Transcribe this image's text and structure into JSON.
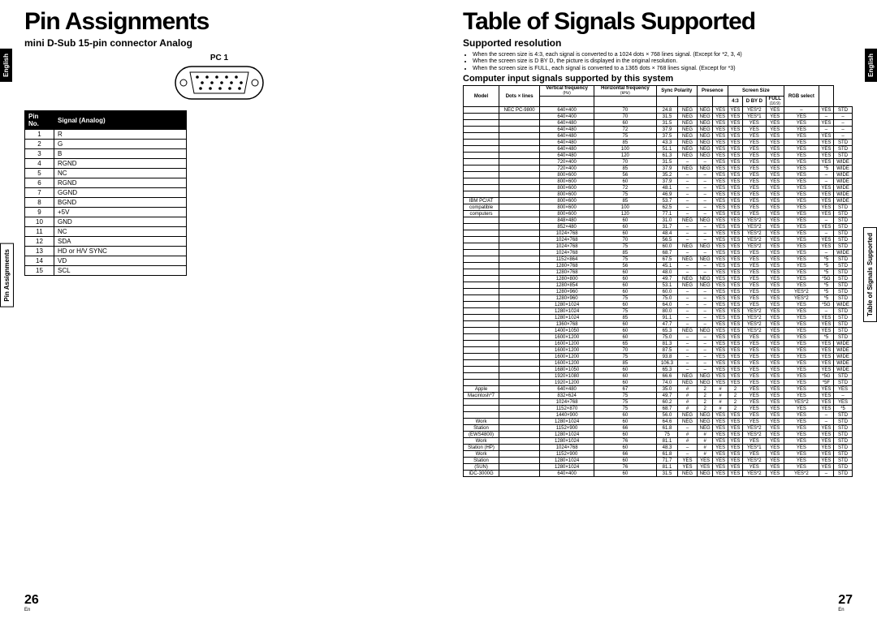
{
  "left": {
    "title": "Pin Assignments",
    "subtitle": "mini D-Sub 15-pin connector Analog",
    "connector_label": "PC 1",
    "tab_english": "English",
    "tab_section": "Pin Assignments",
    "pin_header": [
      "Pin No.",
      "Signal (Analog)"
    ],
    "pins": [
      [
        "1",
        "R"
      ],
      [
        "2",
        "G"
      ],
      [
        "3",
        "B"
      ],
      [
        "4",
        "RGND"
      ],
      [
        "5",
        "NC"
      ],
      [
        "6",
        "RGND"
      ],
      [
        "7",
        "GGND"
      ],
      [
        "8",
        "BGND"
      ],
      [
        "9",
        "+5V"
      ],
      [
        "10",
        "GND"
      ],
      [
        "11",
        "NC"
      ],
      [
        "12",
        "SDA"
      ],
      [
        "13",
        "HD or H/V SYNC"
      ],
      [
        "14",
        "VD"
      ],
      [
        "15",
        "SCL"
      ]
    ],
    "page": "26",
    "lang": "En"
  },
  "right": {
    "title": "Table of Signals Supported",
    "subtitle": "Supported resolution",
    "notes": [
      "When the screen size is 4:3, each signal is converted to a 1024 dots × 768 lines signal. (Except for *2, 3, 4)",
      "When the screen size is D BY D, the picture is displayed in the original resolution.",
      "When the screen size is FULL, each signal is converted to a 1365 dots × 768 lines signal. (Except for *3)"
    ],
    "table_caption": "Computer input signals supported by this system",
    "tab_english": "English",
    "tab_section": "Table of Signals Supported",
    "headers": {
      "model": "Model",
      "dots": "Dots × lines",
      "vf": "Vertical frequency",
      "vf_unit": "(Hz)",
      "hf": "Horizontal frequency",
      "hf_unit": "(kHz)",
      "sync": "Sync Polarity",
      "presence": "Presence",
      "size": "Screen Size",
      "rgb": "RGB select",
      "s43": "4:3",
      "sdbd": "D BY D",
      "sfull": "FULL",
      "s169": "(16:9)"
    },
    "rows": [
      [
        "",
        "NEC PC-9800",
        "640×400",
        "70",
        "24.8",
        "NEG",
        "NEG",
        "YES",
        "YES",
        "YES*2",
        "YES",
        "–",
        "YES",
        "STD"
      ],
      [
        "",
        "",
        "640×400",
        "70",
        "31.5",
        "NEG",
        "NEG",
        "YES",
        "YES",
        "YES*1",
        "YES",
        "YES",
        "–",
        "–"
      ],
      [
        "",
        "",
        "640×480",
        "60",
        "31.5",
        "NEG",
        "NEG",
        "YES",
        "YES",
        "YES",
        "YES",
        "YES",
        "YES",
        "–"
      ],
      [
        "",
        "",
        "640×480",
        "72",
        "37.9",
        "NEG",
        "NEG",
        "YES",
        "YES",
        "YES",
        "YES",
        "YES",
        "–",
        "–"
      ],
      [
        "",
        "",
        "640×480",
        "75",
        "37.5",
        "NEG",
        "NEG",
        "YES",
        "YES",
        "YES",
        "YES",
        "YES",
        "YES",
        "–"
      ],
      [
        "",
        "",
        "640×480",
        "85",
        "43.3",
        "NEG",
        "NEG",
        "YES",
        "YES",
        "YES",
        "YES",
        "YES",
        "YES",
        "STD"
      ],
      [
        "",
        "",
        "640×480",
        "100",
        "51.1",
        "NEG",
        "NEG",
        "YES",
        "YES",
        "YES",
        "YES",
        "YES",
        "YES",
        "STD"
      ],
      [
        "",
        "",
        "640×480",
        "120",
        "61.3",
        "NEG",
        "NEG",
        "YES",
        "YES",
        "YES",
        "YES",
        "YES",
        "YES",
        "STD"
      ],
      [
        "",
        "",
        "720×400",
        "70",
        "31.5",
        "–",
        "–",
        "YES",
        "YES",
        "YES",
        "YES",
        "YES",
        "YES",
        "WIDE"
      ],
      [
        "",
        "",
        "720×400",
        "85",
        "37.9",
        "NEG",
        "NEG",
        "YES",
        "YES",
        "YES",
        "YES",
        "YES",
        "*5",
        "WIDE"
      ],
      [
        "",
        "",
        "800×600",
        "56",
        "35.2",
        "–",
        "–",
        "YES",
        "YES",
        "YES",
        "YES",
        "YES",
        "–",
        "WIDE"
      ],
      [
        "",
        "",
        "800×600",
        "60",
        "37.9",
        "–",
        "–",
        "YES",
        "YES",
        "YES",
        "YES",
        "YES",
        "–",
        "WIDE"
      ],
      [
        "",
        "",
        "800×600",
        "72",
        "48.1",
        "–",
        "–",
        "YES",
        "YES",
        "YES",
        "YES",
        "YES",
        "YES",
        "WIDE"
      ],
      [
        "",
        "",
        "800×600",
        "75",
        "46.9",
        "–",
        "–",
        "YES",
        "YES",
        "YES",
        "YES",
        "YES",
        "YES",
        "WIDE"
      ],
      [
        "IBM PC/AT",
        "",
        "800×600",
        "85",
        "53.7",
        "–",
        "–",
        "YES",
        "YES",
        "YES",
        "YES",
        "YES",
        "YES",
        "WIDE"
      ],
      [
        "compatible",
        "",
        "800×600",
        "100",
        "62.5",
        "–",
        "–",
        "YES",
        "YES",
        "YES",
        "YES",
        "YES",
        "YES",
        "STD"
      ],
      [
        "computers",
        "",
        "800×600",
        "120",
        "77.1",
        "–",
        "–",
        "YES",
        "YES",
        "YES",
        "YES",
        "YES",
        "YES",
        "STD"
      ],
      [
        "",
        "",
        "848×480",
        "60",
        "31.0",
        "NEG",
        "NEG",
        "YES",
        "YES",
        "YES*2",
        "YES",
        "YES",
        "–",
        "STD"
      ],
      [
        "",
        "",
        "852×480",
        "60",
        "31.7",
        "–",
        "–",
        "YES",
        "YES",
        "YES*2",
        "YES",
        "YES",
        "YES",
        "STD"
      ],
      [
        "",
        "",
        "1024×768",
        "60",
        "48.4",
        "–",
        "–",
        "YES",
        "YES",
        "YES*2",
        "YES",
        "YES",
        "–",
        "STD"
      ],
      [
        "",
        "",
        "1024×768",
        "70",
        "56.5",
        "–",
        "–",
        "YES",
        "YES",
        "YES*2",
        "YES",
        "YES",
        "YES",
        "STD"
      ],
      [
        "",
        "",
        "1024×768",
        "75",
        "60.0",
        "NEG",
        "NEG",
        "YES",
        "YES",
        "YES*2",
        "YES",
        "YES",
        "YES",
        "STD"
      ],
      [
        "",
        "",
        "1024×768",
        "85",
        "68.7",
        "–",
        "–",
        "YES",
        "YES",
        "YES",
        "YES",
        "YES",
        "–",
        "WIDE"
      ],
      [
        "",
        "",
        "1152×864",
        "75",
        "67.5",
        "NEG",
        "NEG",
        "YES",
        "YES",
        "YES",
        "YES",
        "YES",
        "*5",
        "STD"
      ],
      [
        "",
        "",
        "1280×768",
        "56",
        "45.1",
        "–",
        "–",
        "YES",
        "YES",
        "YES",
        "YES",
        "YES",
        "*5",
        "STD"
      ],
      [
        "",
        "",
        "1280×768",
        "60",
        "48.0",
        "–",
        "–",
        "YES",
        "YES",
        "YES",
        "YES",
        "YES",
        "*5",
        "STD"
      ],
      [
        "",
        "",
        "1280×800",
        "60",
        "49.7",
        "NEG",
        "NEG",
        "YES",
        "YES",
        "YES",
        "YES",
        "YES",
        "*5G",
        "STD"
      ],
      [
        "",
        "",
        "1280×854",
        "60",
        "53.1",
        "NEG",
        "NEG",
        "YES",
        "YES",
        "YES",
        "YES",
        "YES",
        "*5",
        "STD"
      ],
      [
        "",
        "",
        "1280×960",
        "60",
        "60.0",
        "–",
        "–",
        "YES",
        "YES",
        "YES",
        "YES",
        "YES*2",
        "*5",
        "STD"
      ],
      [
        "",
        "",
        "1280×960",
        "75",
        "75.0",
        "–",
        "–",
        "YES",
        "YES",
        "YES",
        "YES",
        "YES*2",
        "*5",
        "STD"
      ],
      [
        "",
        "",
        "1280×1024",
        "60",
        "64.0",
        "–",
        "–",
        "YES",
        "YES",
        "YES",
        "YES",
        "YES",
        "*5G",
        "WIDE"
      ],
      [
        "",
        "",
        "1280×1024",
        "75",
        "80.0",
        "–",
        "–",
        "YES",
        "YES",
        "YES*2",
        "YES",
        "YES",
        "–",
        "STD"
      ],
      [
        "",
        "",
        "1280×1024",
        "85",
        "91.1",
        "–",
        "–",
        "YES",
        "YES",
        "YES*2",
        "YES",
        "YES",
        "YES",
        "STD"
      ],
      [
        "",
        "",
        "1360×768",
        "60",
        "47.7",
        "–",
        "–",
        "YES",
        "YES",
        "YES*2",
        "YES",
        "YES",
        "YES",
        "STD"
      ],
      [
        "",
        "",
        "1400×1050",
        "60",
        "65.3",
        "NEG",
        "NEG",
        "YES",
        "YES",
        "YES*2",
        "YES",
        "YES",
        "YES",
        "STD"
      ],
      [
        "",
        "",
        "1600×1200",
        "60",
        "75.0",
        "–",
        "–",
        "YES",
        "YES",
        "YES",
        "YES",
        "YES",
        "*5",
        "STD"
      ],
      [
        "",
        "",
        "1600×1200",
        "65",
        "81.3",
        "–",
        "–",
        "YES",
        "YES",
        "YES",
        "YES",
        "YES",
        "YES",
        "WIDE"
      ],
      [
        "",
        "",
        "1600×1200",
        "70",
        "87.5",
        "–",
        "–",
        "YES",
        "YES",
        "YES",
        "YES",
        "YES",
        "YES",
        "WIDE"
      ],
      [
        "",
        "",
        "1600×1200",
        "75",
        "93.8",
        "–",
        "–",
        "YES",
        "YES",
        "YES",
        "YES",
        "YES",
        "YES",
        "WIDE"
      ],
      [
        "",
        "",
        "1600×1200",
        "85",
        "106.3",
        "–",
        "–",
        "YES",
        "YES",
        "YES",
        "YES",
        "YES",
        "YES",
        "WIDE"
      ],
      [
        "",
        "",
        "1680×1050",
        "60",
        "65.3",
        "–",
        "–",
        "YES",
        "YES",
        "YES",
        "YES",
        "YES",
        "YES",
        "WIDE"
      ],
      [
        "",
        "",
        "1920×1080",
        "60",
        "66.6",
        "NEG",
        "NEG",
        "YES",
        "YES",
        "YES",
        "YES",
        "YES",
        "*5G",
        "STD"
      ],
      [
        "",
        "",
        "1920×1200",
        "60",
        "74.0",
        "NEG",
        "NEG",
        "YES",
        "YES",
        "YES",
        "YES",
        "YES",
        "*5F",
        "STD"
      ],
      [
        "Apple",
        "",
        "640×480",
        "67",
        "35.0",
        "#",
        "2",
        "#",
        "2",
        "YES",
        "YES",
        "YES",
        "YES",
        "YES"
      ],
      [
        "Macintosh*7",
        "",
        "832×624",
        "75",
        "49.7",
        "#",
        "2",
        "#",
        "2",
        "YES",
        "YES",
        "YES",
        "YES",
        "–"
      ],
      [
        "",
        "",
        "1024×768",
        "75",
        "60.2",
        "#",
        "2",
        "#",
        "2",
        "YES",
        "YES",
        "YES*2",
        "YES",
        "YES"
      ],
      [
        "",
        "",
        "1152×870",
        "75",
        "68.7",
        "#",
        "2",
        "#",
        "2",
        "YES",
        "YES",
        "YES",
        "YES",
        "*5"
      ],
      [
        "",
        "",
        "1440×900",
        "60",
        "56.0",
        "NEG",
        "NEG",
        "YES",
        "YES",
        "YES",
        "YES",
        "YES",
        "–",
        "STD"
      ],
      [
        "Work",
        "",
        "1280×1024",
        "60",
        "64.6",
        "NEG",
        "NEG",
        "YES",
        "YES",
        "YES",
        "YES",
        "YES",
        "–",
        "STD"
      ],
      [
        "Station",
        "",
        "1152×900",
        "66",
        "61.8",
        "–",
        "NEG",
        "YES",
        "YES",
        "YES*2",
        "YES",
        "YES",
        "YES",
        "STD"
      ],
      [
        "(EWS4800)",
        "",
        "1280×1024",
        "60",
        "75",
        "#",
        "#",
        "YES",
        "YES",
        "YES*2",
        "YES",
        "YES",
        "YES",
        "STD"
      ],
      [
        "Work",
        "",
        "1280×1024",
        "76",
        "81.1",
        "#",
        "#",
        "YES",
        "YES",
        "YES",
        "YES",
        "YES",
        "YES",
        "STD"
      ],
      [
        "Station (HP)",
        "",
        "1024×768",
        "60",
        "48.3",
        "–",
        "#",
        "YES",
        "YES",
        "YES*1",
        "YES",
        "YES",
        "YES",
        "STD"
      ],
      [
        "Work",
        "",
        "1152×900",
        "66",
        "61.8",
        "–",
        "#",
        "YES",
        "YES",
        "YES",
        "YES",
        "YES",
        "YES",
        "STD"
      ],
      [
        "Station",
        "",
        "1280×1024",
        "60",
        "71.7",
        "YES",
        "YES",
        "YES",
        "YES",
        "YES*2",
        "YES",
        "YES",
        "YES",
        "STD"
      ],
      [
        "(SUN)",
        "",
        "1280×1024",
        "76",
        "81.1",
        "YES",
        "YES",
        "YES",
        "YES",
        "YES",
        "YES",
        "YES",
        "YES",
        "STD"
      ],
      [
        "IDC-3000G",
        "",
        "640×400",
        "60",
        "31.5",
        "NEG",
        "NEG",
        "YES",
        "YES",
        "YES*2",
        "YES",
        "YES*2",
        "–",
        "STD"
      ]
    ],
    "page": "27",
    "lang": "En"
  }
}
